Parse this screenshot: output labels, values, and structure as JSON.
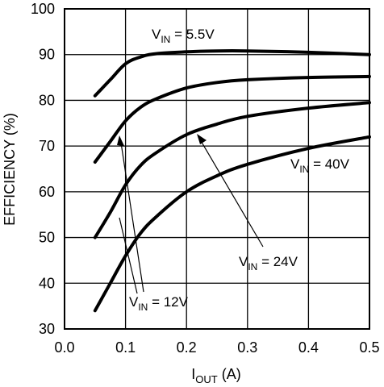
{
  "chart_data": {
    "type": "line",
    "title": "",
    "xlabel": {
      "main": "I",
      "sub": "OUT",
      "suffix": " (A)"
    },
    "ylabel": "EFFICIENCY (%)",
    "xlim": [
      0.0,
      0.5
    ],
    "ylim": [
      30,
      100
    ],
    "grid": true,
    "xticks": [
      "0.0",
      "0.1",
      "0.2",
      "0.3",
      "0.4",
      "0.5"
    ],
    "yticks": [
      "30",
      "40",
      "50",
      "60",
      "70",
      "80",
      "90",
      "100"
    ],
    "series": [
      {
        "name": "V_IN = 5.5V",
        "x": [
          0.05,
          0.075,
          0.1,
          0.125,
          0.15,
          0.2,
          0.25,
          0.3,
          0.4,
          0.5
        ],
        "y": [
          81,
          84.5,
          88,
          89.5,
          90.2,
          90.6,
          90.8,
          90.8,
          90.5,
          90
        ]
      },
      {
        "name": "V_IN = 12V",
        "x": [
          0.05,
          0.075,
          0.1,
          0.125,
          0.15,
          0.2,
          0.25,
          0.3,
          0.4,
          0.5
        ],
        "y": [
          66.5,
          71,
          75.5,
          78.5,
          80.3,
          82.7,
          83.9,
          84.5,
          85,
          85.2
        ]
      },
      {
        "name": "V_IN = 24V",
        "x": [
          0.05,
          0.075,
          0.1,
          0.125,
          0.15,
          0.2,
          0.25,
          0.3,
          0.4,
          0.5
        ],
        "y": [
          50,
          55.5,
          61.5,
          65.8,
          68.5,
          72.5,
          74.8,
          76.5,
          78.3,
          79.5
        ]
      },
      {
        "name": "V_IN = 40V",
        "x": [
          0.05,
          0.075,
          0.1,
          0.125,
          0.15,
          0.2,
          0.25,
          0.3,
          0.4,
          0.5
        ],
        "y": [
          34,
          40,
          46,
          51,
          54.5,
          60,
          63.5,
          66,
          69.5,
          72
        ]
      }
    ],
    "annotations": [
      {
        "main": "V",
        "sub": "IN",
        "suffix": " = 5.5V"
      },
      {
        "main": "V",
        "sub": "IN",
        "suffix": " = 40V"
      },
      {
        "main": "V",
        "sub": "IN",
        "suffix": " = 24V"
      },
      {
        "main": "V",
        "sub": "IN",
        "suffix": " = 12V"
      }
    ]
  }
}
